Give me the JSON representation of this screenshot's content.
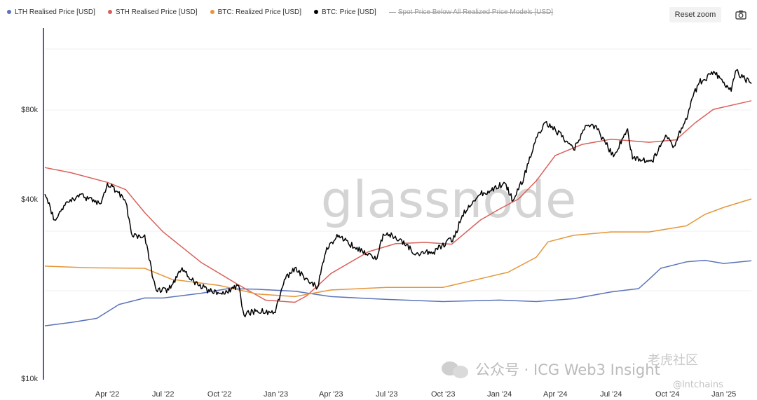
{
  "legend": [
    {
      "label": "LTH Realised Price [USD]",
      "color": "#5b73b8",
      "disabled": false
    },
    {
      "label": "STH Realised Price [USD]",
      "color": "#d9605a",
      "disabled": false
    },
    {
      "label": "BTC: Realized Price [USD]",
      "color": "#e5963a",
      "disabled": false
    },
    {
      "label": "BTC: Price [USD]",
      "color": "#000000",
      "disabled": false
    },
    {
      "label": "Spot Price Below All Realized Price Models [USD]",
      "color": "#888888",
      "disabled": true
    }
  ],
  "toolbar": {
    "reset_zoom_label": "Reset zoom",
    "camera_icon": "camera-icon"
  },
  "watermarks": {
    "logo": "glassnode",
    "wechat_text": "公众号 · ICG Web3 Insight",
    "corner_text": "老虎社区",
    "corner_handle": "@lntchains"
  },
  "chart_data": {
    "type": "line",
    "y_scale": "log",
    "ylim": [
      10000,
      150000
    ],
    "y_ticks": [
      {
        "value": 10000,
        "label": "$10k"
      },
      {
        "value": 40000,
        "label": "$40k"
      },
      {
        "value": 80000,
        "label": "$80k"
      }
    ],
    "x_range": [
      "2021-12-20",
      "2025-02-15"
    ],
    "x_ticks": [
      {
        "date": "2022-04-01",
        "label": "Apr '22"
      },
      {
        "date": "2022-07-01",
        "label": "Jul '22"
      },
      {
        "date": "2022-10-01",
        "label": "Oct '22"
      },
      {
        "date": "2023-01-01",
        "label": "Jan '23"
      },
      {
        "date": "2023-04-01",
        "label": "Apr '23"
      },
      {
        "date": "2023-07-01",
        "label": "Jul '23"
      },
      {
        "date": "2023-10-01",
        "label": "Oct '23"
      },
      {
        "date": "2024-01-01",
        "label": "Jan '24"
      },
      {
        "date": "2024-04-01",
        "label": "Apr '24"
      },
      {
        "date": "2024-07-01",
        "label": "Jul '24"
      },
      {
        "date": "2024-10-01",
        "label": "Oct '24"
      },
      {
        "date": "2025-01-01",
        "label": "Jan '25"
      }
    ],
    "series": [
      {
        "name": "LTH Realised Price [USD]",
        "color": "#5b73b8",
        "width": 1.5,
        "points": [
          [
            "2021-12-20",
            15000
          ],
          [
            "2022-02-01",
            15400
          ],
          [
            "2022-03-15",
            15900
          ],
          [
            "2022-04-20",
            17700
          ],
          [
            "2022-06-01",
            18600
          ],
          [
            "2022-07-01",
            18600
          ],
          [
            "2022-09-01",
            19300
          ],
          [
            "2022-10-15",
            20000
          ],
          [
            "2022-12-01",
            19900
          ],
          [
            "2023-02-01",
            19600
          ],
          [
            "2023-04-01",
            18800
          ],
          [
            "2023-07-01",
            18400
          ],
          [
            "2023-10-01",
            18100
          ],
          [
            "2024-01-01",
            18300
          ],
          [
            "2024-03-01",
            18100
          ],
          [
            "2024-05-01",
            18500
          ],
          [
            "2024-07-01",
            19500
          ],
          [
            "2024-08-15",
            20000
          ],
          [
            "2024-09-01",
            21500
          ],
          [
            "2024-09-20",
            23400
          ],
          [
            "2024-11-01",
            24600
          ],
          [
            "2024-12-01",
            24900
          ],
          [
            "2025-01-01",
            24300
          ],
          [
            "2025-02-15",
            24800
          ]
        ]
      },
      {
        "name": "STH Realised Price [USD]",
        "color": "#d9605a",
        "width": 1.5,
        "points": [
          [
            "2021-12-20",
            51000
          ],
          [
            "2022-02-01",
            49000
          ],
          [
            "2022-04-01",
            45500
          ],
          [
            "2022-05-01",
            43000
          ],
          [
            "2022-06-01",
            36000
          ],
          [
            "2022-07-01",
            31000
          ],
          [
            "2022-09-01",
            24500
          ],
          [
            "2022-11-01",
            20600
          ],
          [
            "2022-12-15",
            18300
          ],
          [
            "2023-02-01",
            18000
          ],
          [
            "2023-02-20",
            18900
          ],
          [
            "2023-04-01",
            22500
          ],
          [
            "2023-06-01",
            26600
          ],
          [
            "2023-07-15",
            28300
          ],
          [
            "2023-09-01",
            28600
          ],
          [
            "2023-10-15",
            28200
          ],
          [
            "2023-12-01",
            34000
          ],
          [
            "2024-01-01",
            37000
          ],
          [
            "2024-02-01",
            40000
          ],
          [
            "2024-03-01",
            46000
          ],
          [
            "2024-04-01",
            56000
          ],
          [
            "2024-05-15",
            61000
          ],
          [
            "2024-07-01",
            63500
          ],
          [
            "2024-09-01",
            62000
          ],
          [
            "2024-10-15",
            63200
          ],
          [
            "2024-11-15",
            72000
          ],
          [
            "2024-12-15",
            80000
          ],
          [
            "2025-02-15",
            85500
          ]
        ]
      },
      {
        "name": "BTC: Realized Price [USD]",
        "color": "#e5963a",
        "width": 1.5,
        "points": [
          [
            "2021-12-20",
            23800
          ],
          [
            "2022-03-01",
            23500
          ],
          [
            "2022-06-01",
            23400
          ],
          [
            "2022-07-15",
            21500
          ],
          [
            "2022-10-01",
            20500
          ],
          [
            "2022-12-01",
            19200
          ],
          [
            "2023-02-01",
            18800
          ],
          [
            "2023-04-01",
            19800
          ],
          [
            "2023-07-01",
            20200
          ],
          [
            "2023-10-01",
            20200
          ],
          [
            "2023-12-01",
            21600
          ],
          [
            "2024-01-15",
            22700
          ],
          [
            "2024-03-01",
            25500
          ],
          [
            "2024-03-20",
            28700
          ],
          [
            "2024-05-01",
            30200
          ],
          [
            "2024-07-01",
            31000
          ],
          [
            "2024-09-01",
            31000
          ],
          [
            "2024-11-01",
            32500
          ],
          [
            "2024-12-01",
            35500
          ],
          [
            "2025-01-01",
            37500
          ],
          [
            "2025-02-15",
            40000
          ]
        ]
      },
      {
        "name": "BTC: Price [USD]",
        "color": "#000000",
        "width": 1.5,
        "points": [
          [
            "2021-12-20",
            41500
          ],
          [
            "2022-01-05",
            34000
          ],
          [
            "2022-01-20",
            38000
          ],
          [
            "2022-02-15",
            41500
          ],
          [
            "2022-03-01",
            40000
          ],
          [
            "2022-03-20",
            38500
          ],
          [
            "2022-04-01",
            45200
          ],
          [
            "2022-04-15",
            42500
          ],
          [
            "2022-05-01",
            39000
          ],
          [
            "2022-05-12",
            30000
          ],
          [
            "2022-06-01",
            30300
          ],
          [
            "2022-06-15",
            21500
          ],
          [
            "2022-06-20",
            19700
          ],
          [
            "2022-07-10",
            19800
          ],
          [
            "2022-08-01",
            23500
          ],
          [
            "2022-08-20",
            21200
          ],
          [
            "2022-09-15",
            19600
          ],
          [
            "2022-10-10",
            19200
          ],
          [
            "2022-11-01",
            20500
          ],
          [
            "2022-11-10",
            16300
          ],
          [
            "2022-12-01",
            16900
          ],
          [
            "2022-12-31",
            16600
          ],
          [
            "2023-01-15",
            21500
          ],
          [
            "2023-02-01",
            23500
          ],
          [
            "2023-02-15",
            22000
          ],
          [
            "2023-03-10",
            20200
          ],
          [
            "2023-03-25",
            27500
          ],
          [
            "2023-04-14",
            30200
          ],
          [
            "2023-05-10",
            27500
          ],
          [
            "2023-06-15",
            25200
          ],
          [
            "2023-06-25",
            30500
          ],
          [
            "2023-07-15",
            30000
          ],
          [
            "2023-08-18",
            26200
          ],
          [
            "2023-09-15",
            26500
          ],
          [
            "2023-10-20",
            29800
          ],
          [
            "2023-11-01",
            35200
          ],
          [
            "2023-12-01",
            41500
          ],
          [
            "2024-01-10",
            45200
          ],
          [
            "2024-01-23",
            39500
          ],
          [
            "2024-02-10",
            47500
          ],
          [
            "2024-02-28",
            62000
          ],
          [
            "2024-03-14",
            72000
          ],
          [
            "2024-04-01",
            68500
          ],
          [
            "2024-05-01",
            58500
          ],
          [
            "2024-05-20",
            70500
          ],
          [
            "2024-06-05",
            70500
          ],
          [
            "2024-07-05",
            55500
          ],
          [
            "2024-07-28",
            68800
          ],
          [
            "2024-08-05",
            54500
          ],
          [
            "2024-09-06",
            53500
          ],
          [
            "2024-09-28",
            65500
          ],
          [
            "2024-10-10",
            59500
          ],
          [
            "2024-10-29",
            72000
          ],
          [
            "2024-11-12",
            88500
          ],
          [
            "2024-11-22",
            98500
          ],
          [
            "2024-12-17",
            106500
          ],
          [
            "2025-01-13",
            92000
          ],
          [
            "2025-01-20",
            107500
          ],
          [
            "2025-02-15",
            97500
          ]
        ]
      }
    ]
  }
}
